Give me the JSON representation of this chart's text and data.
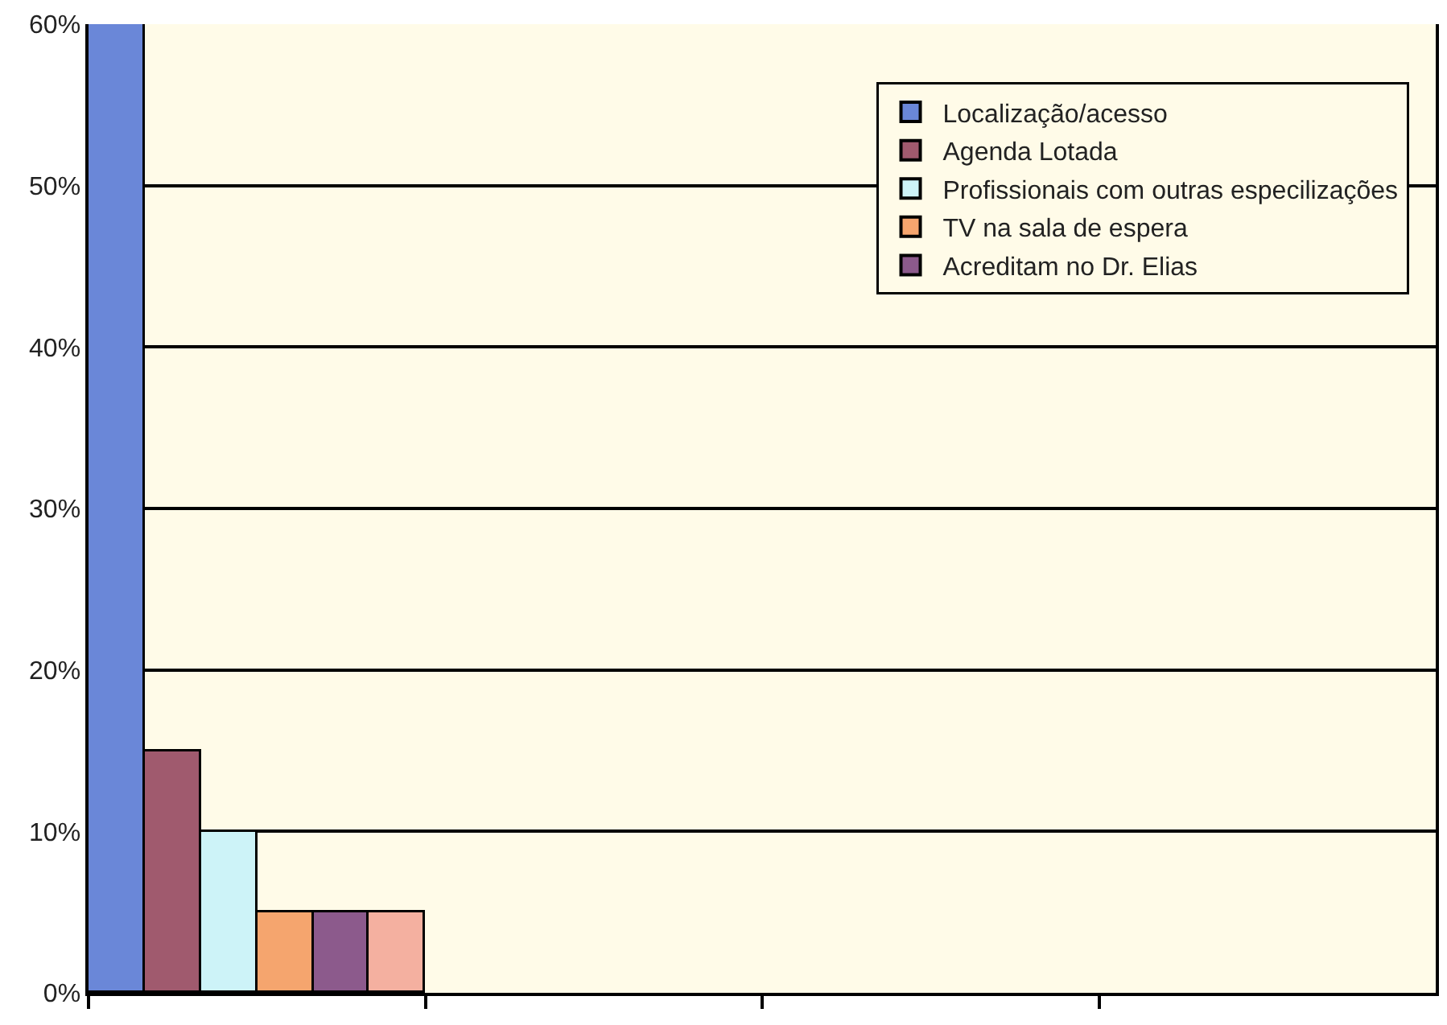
{
  "chart_data": {
    "type": "bar",
    "categories": [
      null,
      null,
      null,
      null
    ],
    "series": [
      {
        "name": "Localização/acesso",
        "color": "#6a87d8",
        "values": [
          60,
          null,
          null,
          null
        ]
      },
      {
        "name": "Agenda Lotada",
        "color": "#a05a6e",
        "values": [
          15,
          null,
          null,
          null
        ]
      },
      {
        "name": "Profissionais com outras especilizações",
        "color": "#cdf3f8",
        "values": [
          10,
          null,
          null,
          null
        ]
      },
      {
        "name": "TV na sala de espera",
        "color": "#f5a56e",
        "values": [
          5,
          null,
          null,
          null
        ]
      },
      {
        "name": "Acreditam no Dr. Elias",
        "color": "#8c5a8c",
        "values": [
          5,
          null,
          null,
          null
        ]
      },
      {
        "color": "#f4b0a0",
        "values": [
          5,
          null,
          null,
          null
        ]
      }
    ],
    "ylim": [
      0,
      60
    ],
    "yticks": [
      {
        "value": 0,
        "label": "0%"
      },
      {
        "value": 10,
        "label": "10%"
      },
      {
        "value": 20,
        "label": "20%"
      },
      {
        "value": 30,
        "label": "30%"
      },
      {
        "value": 40,
        "label": "40%"
      },
      {
        "value": 50,
        "label": "50%"
      },
      {
        "value": 60,
        "label": "60%"
      }
    ],
    "grid": "y",
    "legend": "top right"
  }
}
